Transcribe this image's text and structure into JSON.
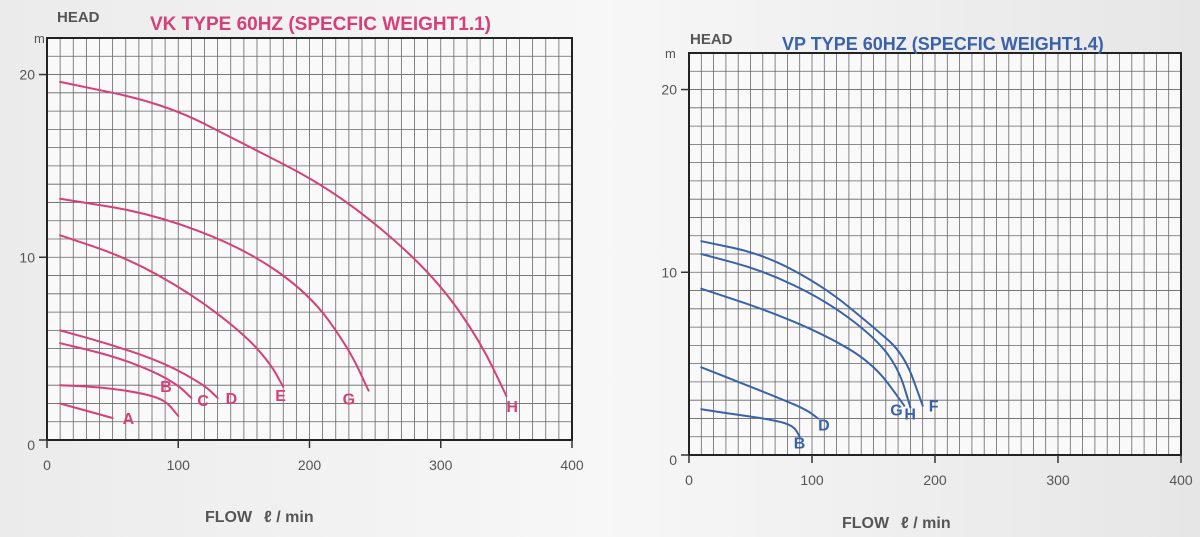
{
  "charts": [
    {
      "head_label": "HEAD",
      "title": "VK TYPE 60HZ (SPECFIC WEIGHT1.1)",
      "ylabel_unit": "m",
      "xlabel": "FLOW",
      "xlabel_unit": "ℓ / min",
      "xticks": [
        "0",
        "100",
        "200",
        "300",
        "400"
      ],
      "yticks": [
        "0",
        "10",
        "20"
      ]
    },
    {
      "head_label": "HEAD",
      "title": "VP TYPE 60HZ (SPECFIC WEIGHT1.4)",
      "ylabel_unit": "m",
      "xlabel": "FLOW",
      "xlabel_unit": "ℓ / min",
      "xticks": [
        "0",
        "100",
        "200",
        "300",
        "400"
      ],
      "yticks": [
        "0",
        "10",
        "20"
      ]
    }
  ],
  "chart_data": [
    {
      "type": "line",
      "title": "VK TYPE 60HZ (SPECFIC WEIGHT1.1)",
      "xlabel": "FLOW ℓ / min",
      "ylabel": "HEAD m",
      "xlim": [
        0,
        400
      ],
      "ylim": [
        0,
        22
      ],
      "grid": true,
      "color": "#d6407a",
      "series": [
        {
          "name": "A",
          "x": [
            10,
            30,
            50
          ],
          "y": [
            2.0,
            1.6,
            1.2
          ]
        },
        {
          "name": "B",
          "x": [
            10,
            40,
            70,
            90,
            100
          ],
          "y": [
            3.0,
            2.9,
            2.6,
            2.2,
            1.3
          ]
        },
        {
          "name": "C",
          "x": [
            10,
            50,
            80,
            100,
            110
          ],
          "y": [
            5.3,
            4.6,
            3.8,
            3.0,
            2.3
          ]
        },
        {
          "name": "D",
          "x": [
            10,
            50,
            90,
            120,
            130
          ],
          "y": [
            6.0,
            5.2,
            4.2,
            3.0,
            2.3
          ]
        },
        {
          "name": "E",
          "x": [
            10,
            60,
            110,
            150,
            170,
            180
          ],
          "y": [
            11.2,
            10.0,
            8.0,
            5.8,
            4.2,
            2.9
          ]
        },
        {
          "name": "G",
          "x": [
            10,
            80,
            150,
            200,
            230,
            245
          ],
          "y": [
            13.2,
            12.4,
            10.5,
            8.0,
            5.0,
            2.7
          ]
        },
        {
          "name": "H",
          "x": [
            10,
            90,
            150,
            210,
            260,
            300,
            330,
            350
          ],
          "y": [
            19.6,
            18.4,
            16.2,
            14.0,
            11.3,
            8.5,
            5.4,
            2.4
          ]
        }
      ]
    },
    {
      "type": "line",
      "title": "VP TYPE 60HZ (SPECFIC WEIGHT1.4)",
      "xlabel": "FLOW ℓ / min",
      "ylabel": "HEAD m",
      "xlim": [
        0,
        400
      ],
      "ylim": [
        0,
        22
      ],
      "grid": true,
      "color": "#3a62a8",
      "series": [
        {
          "name": "B",
          "x": [
            10,
            40,
            70,
            85,
            90
          ],
          "y": [
            2.5,
            2.2,
            1.9,
            1.6,
            1.0
          ]
        },
        {
          "name": "D",
          "x": [
            10,
            40,
            70,
            95,
            105
          ],
          "y": [
            4.8,
            4.0,
            3.2,
            2.5,
            2.0
          ]
        },
        {
          "name": "G",
          "x": [
            10,
            60,
            110,
            150,
            175
          ],
          "y": [
            9.1,
            8.0,
            6.6,
            5.0,
            2.7
          ]
        },
        {
          "name": "H",
          "x": [
            10,
            60,
            110,
            150,
            170,
            180
          ],
          "y": [
            11.0,
            10.1,
            8.5,
            6.5,
            4.8,
            2.6
          ]
        },
        {
          "name": "F",
          "x": [
            10,
            60,
            110,
            150,
            175,
            190
          ],
          "y": [
            11.7,
            11.0,
            9.2,
            7.0,
            5.5,
            2.7
          ]
        }
      ]
    }
  ]
}
